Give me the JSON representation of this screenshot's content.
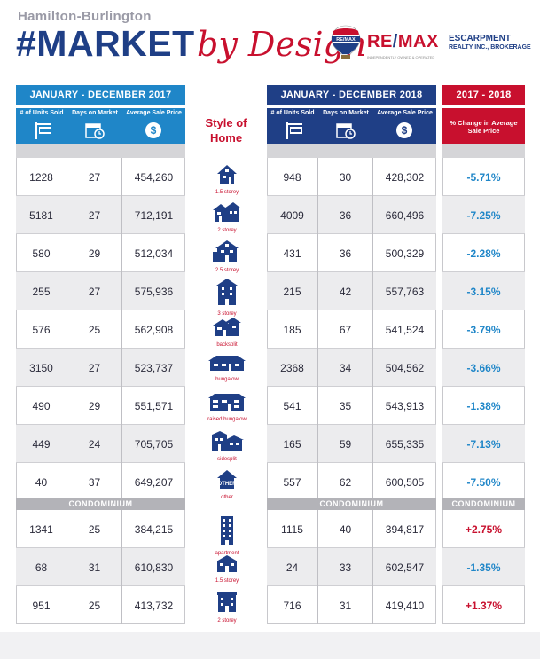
{
  "header": {
    "region": "Hamilton-Burlington",
    "title": "#MARKET",
    "script": "by Design",
    "brand_remax": "RE",
    "brand_slash": "/",
    "brand_max": "MAX",
    "brand_escarpment": "ESCARPMENT",
    "brand_brokerage": "REALTY INC., BROKERAGE",
    "brand_tagline": "INDEPENDENTLY OWNED & OPERATED",
    "logo_text": "RE/MAX"
  },
  "panels": {
    "left_title": "JANUARY - DECEMBER 2017",
    "right_title": "JANUARY - DECEMBER 2018",
    "change_title": "2017 - 2018",
    "col_units": "# of Units Sold",
    "col_days": "Days on Market",
    "col_avg": "Average Sale Price",
    "col_change": "% Change in Average Sale Price",
    "style_label": "Style of Home",
    "condo_label": "CONDOMINIUM"
  },
  "rows": [
    {
      "style": "1.5 storey",
      "icon": "house-1-5-storey-icon",
      "y2017": {
        "units": "1228",
        "days": "27",
        "avg": "454,260"
      },
      "y2018": {
        "units": "948",
        "days": "30",
        "avg": "428,302"
      },
      "change": "-5.71%",
      "sign": "neg"
    },
    {
      "style": "2 storey",
      "icon": "house-2-storey-icon",
      "y2017": {
        "units": "5181",
        "days": "27",
        "avg": "712,191"
      },
      "y2018": {
        "units": "4009",
        "days": "36",
        "avg": "660,496"
      },
      "change": "-7.25%",
      "sign": "neg"
    },
    {
      "style": "2.5 storey",
      "icon": "house-2-5-storey-icon",
      "y2017": {
        "units": "580",
        "days": "29",
        "avg": "512,034"
      },
      "y2018": {
        "units": "431",
        "days": "36",
        "avg": "500,329"
      },
      "change": "-2.28%",
      "sign": "neg"
    },
    {
      "style": "3 storey",
      "icon": "house-3-storey-icon",
      "y2017": {
        "units": "255",
        "days": "27",
        "avg": "575,936"
      },
      "y2018": {
        "units": "215",
        "days": "42",
        "avg": "557,763"
      },
      "change": "-3.15%",
      "sign": "neg"
    },
    {
      "style": "backsplit",
      "icon": "backsplit-icon",
      "y2017": {
        "units": "576",
        "days": "25",
        "avg": "562,908"
      },
      "y2018": {
        "units": "185",
        "days": "67",
        "avg": "541,524"
      },
      "change": "-3.79%",
      "sign": "neg"
    },
    {
      "style": "bungalow",
      "icon": "bungalow-icon",
      "y2017": {
        "units": "3150",
        "days": "27",
        "avg": "523,737"
      },
      "y2018": {
        "units": "2368",
        "days": "34",
        "avg": "504,562"
      },
      "change": "-3.66%",
      "sign": "neg"
    },
    {
      "style": "raised bungalow",
      "icon": "raised-bungalow-icon",
      "y2017": {
        "units": "490",
        "days": "29",
        "avg": "551,571"
      },
      "y2018": {
        "units": "541",
        "days": "35",
        "avg": "543,913"
      },
      "change": "-1.38%",
      "sign": "neg"
    },
    {
      "style": "sidesplit",
      "icon": "sidesplit-icon",
      "y2017": {
        "units": "449",
        "days": "24",
        "avg": "705,705"
      },
      "y2018": {
        "units": "165",
        "days": "59",
        "avg": "655,335"
      },
      "change": "-7.13%",
      "sign": "neg"
    },
    {
      "style": "other",
      "icon": "other-icon",
      "y2017": {
        "units": "40",
        "days": "37",
        "avg": "649,207"
      },
      "y2018": {
        "units": "557",
        "days": "62",
        "avg": "600,505"
      },
      "change": "-7.50%",
      "sign": "neg"
    }
  ],
  "condo_rows": [
    {
      "style": "apartment",
      "icon": "apartment-icon",
      "y2017": {
        "units": "1341",
        "days": "25",
        "avg": "384,215"
      },
      "y2018": {
        "units": "1115",
        "days": "40",
        "avg": "394,817"
      },
      "change": "+2.75%",
      "sign": "pos"
    },
    {
      "style": "1.5 storey",
      "icon": "condo-1-5-storey-icon",
      "y2017": {
        "units": "68",
        "days": "31",
        "avg": "610,830"
      },
      "y2018": {
        "units": "24",
        "days": "33",
        "avg": "602,547"
      },
      "change": "-1.35%",
      "sign": "neg"
    },
    {
      "style": "2 storey",
      "icon": "condo-2-storey-icon",
      "y2017": {
        "units": "951",
        "days": "25",
        "avg": "413,732"
      },
      "y2018": {
        "units": "716",
        "days": "31",
        "avg": "419,410"
      },
      "change": "+1.37%",
      "sign": "pos"
    }
  ],
  "colors": {
    "blue_light": "#1f86c8",
    "blue_dark": "#1f3f86",
    "red": "#c8102e",
    "grey": "#b3b3b8"
  }
}
